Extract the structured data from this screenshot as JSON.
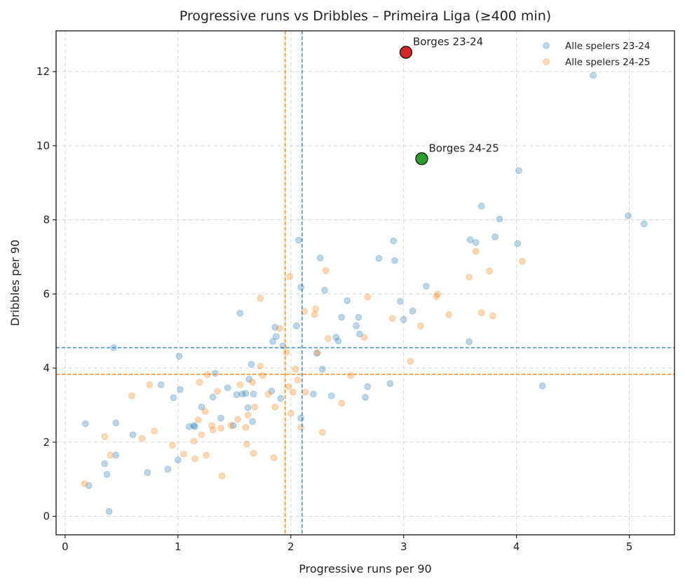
{
  "chart_data": {
    "type": "scatter",
    "title": "Progressive runs vs Dribbles – Primeira Liga (≥400 min)",
    "xlabel": "Progressive runs per 90",
    "ylabel": "Dribbles per 90",
    "xlim": [
      -0.08,
      5.4
    ],
    "ylim": [
      -0.5,
      13.1
    ],
    "xticks": [
      0,
      1,
      2,
      3,
      4,
      5
    ],
    "yticks": [
      0,
      2,
      4,
      6,
      8,
      10,
      12
    ],
    "grid": true,
    "legend_position": "top-right",
    "colors": {
      "series_2324": "#1f77b4",
      "series_2425": "#ff7f0e",
      "highlight_2324": "#d62728",
      "highlight_2425": "#2ca02c",
      "grid": "#d0d0d0"
    },
    "reference_lines": [
      {
        "axis": "x",
        "value": 2.1,
        "series": "Alle spelers 23-24"
      },
      {
        "axis": "x",
        "value": 1.95,
        "series": "Alle spelers 24-25"
      },
      {
        "axis": "y",
        "value": 4.55,
        "series": "Alle spelers 23-24"
      },
      {
        "axis": "y",
        "value": 3.83,
        "series": "Alle spelers 24-25"
      }
    ],
    "series": [
      {
        "name": "Alle spelers 23-24",
        "points": [
          [
            0.18,
            2.5
          ],
          [
            0.21,
            0.83
          ],
          [
            0.35,
            1.42
          ],
          [
            0.37,
            1.13
          ],
          [
            0.39,
            0.13
          ],
          [
            0.43,
            4.55
          ],
          [
            0.45,
            1.65
          ],
          [
            0.45,
            2.52
          ],
          [
            0.6,
            2.2
          ],
          [
            0.73,
            1.18
          ],
          [
            0.85,
            3.55
          ],
          [
            0.91,
            1.27
          ],
          [
            0.96,
            3.2
          ],
          [
            1.0,
            1.52
          ],
          [
            1.01,
            4.32
          ],
          [
            1.02,
            3.42
          ],
          [
            1.1,
            2.42
          ],
          [
            1.14,
            2.45
          ],
          [
            1.15,
            2.42
          ],
          [
            1.21,
            2.95
          ],
          [
            1.31,
            3.22
          ],
          [
            1.33,
            3.86
          ],
          [
            1.38,
            2.65
          ],
          [
            1.44,
            3.47
          ],
          [
            1.49,
            2.45
          ],
          [
            1.52,
            3.28
          ],
          [
            1.55,
            5.48
          ],
          [
            1.57,
            3.3
          ],
          [
            1.6,
            3.32
          ],
          [
            1.62,
            2.93
          ],
          [
            1.63,
            3.7
          ],
          [
            1.65,
            4.1
          ],
          [
            1.66,
            2.56
          ],
          [
            1.67,
            3.3
          ],
          [
            1.83,
            3.38
          ],
          [
            1.84,
            4.72
          ],
          [
            1.86,
            5.1
          ],
          [
            1.87,
            4.85
          ],
          [
            1.91,
            3.18
          ],
          [
            1.93,
            4.6
          ],
          [
            2.05,
            5.14
          ],
          [
            2.07,
            7.45
          ],
          [
            2.09,
            6.18
          ],
          [
            2.09,
            2.65
          ],
          [
            2.2,
            3.3
          ],
          [
            2.23,
            4.4
          ],
          [
            2.26,
            6.97
          ],
          [
            2.28,
            3.97
          ],
          [
            2.3,
            6.1
          ],
          [
            2.36,
            3.25
          ],
          [
            2.4,
            4.83
          ],
          [
            2.42,
            4.73
          ],
          [
            2.45,
            5.37
          ],
          [
            2.5,
            5.82
          ],
          [
            2.58,
            5.14
          ],
          [
            2.6,
            5.37
          ],
          [
            2.61,
            4.92
          ],
          [
            2.66,
            3.21
          ],
          [
            2.68,
            3.5
          ],
          [
            2.78,
            6.96
          ],
          [
            2.88,
            3.58
          ],
          [
            2.91,
            7.43
          ],
          [
            2.92,
            6.9
          ],
          [
            2.97,
            5.8
          ],
          [
            3.0,
            5.31
          ],
          [
            3.08,
            5.54
          ],
          [
            3.2,
            6.21
          ],
          [
            3.58,
            4.71
          ],
          [
            3.59,
            7.46
          ],
          [
            3.64,
            7.39
          ],
          [
            3.69,
            8.37
          ],
          [
            3.81,
            7.54
          ],
          [
            3.85,
            8.02
          ],
          [
            4.01,
            7.36
          ],
          [
            4.02,
            9.33
          ],
          [
            4.23,
            3.52
          ],
          [
            4.68,
            11.9
          ],
          [
            4.99,
            8.11
          ],
          [
            5.13,
            7.89
          ]
        ]
      },
      {
        "name": "Alle spelers 24-25",
        "points": [
          [
            0.17,
            0.88
          ],
          [
            0.35,
            2.15
          ],
          [
            0.4,
            1.65
          ],
          [
            0.59,
            3.25
          ],
          [
            0.68,
            2.1
          ],
          [
            0.75,
            3.55
          ],
          [
            0.79,
            2.3
          ],
          [
            0.95,
            1.92
          ],
          [
            1.05,
            1.68
          ],
          [
            1.14,
            2.03
          ],
          [
            1.15,
            1.55
          ],
          [
            1.18,
            2.6
          ],
          [
            1.21,
            2.2
          ],
          [
            1.19,
            3.62
          ],
          [
            1.24,
            2.83
          ],
          [
            1.25,
            1.65
          ],
          [
            1.26,
            3.82
          ],
          [
            1.3,
            2.45
          ],
          [
            1.31,
            2.33
          ],
          [
            1.35,
            3.37
          ],
          [
            1.38,
            2.38
          ],
          [
            1.39,
            1.09
          ],
          [
            1.47,
            2.45
          ],
          [
            1.53,
            2.62
          ],
          [
            1.55,
            3.55
          ],
          [
            1.6,
            2.4
          ],
          [
            1.61,
            1.95
          ],
          [
            1.62,
            2.73
          ],
          [
            1.66,
            3.62
          ],
          [
            1.67,
            1.7
          ],
          [
            1.68,
            2.95
          ],
          [
            1.73,
            4.05
          ],
          [
            1.73,
            5.88
          ],
          [
            1.75,
            3.8
          ],
          [
            1.8,
            3.3
          ],
          [
            1.85,
            1.58
          ],
          [
            1.86,
            2.95
          ],
          [
            1.9,
            5.07
          ],
          [
            1.96,
            4.43
          ],
          [
            1.98,
            3.5
          ],
          [
            1.99,
            6.47
          ],
          [
            2.0,
            2.78
          ],
          [
            2.02,
            3.35
          ],
          [
            2.04,
            3.97
          ],
          [
            2.06,
            3.68
          ],
          [
            2.09,
            2.4
          ],
          [
            2.12,
            5.53
          ],
          [
            2.13,
            3.35
          ],
          [
            2.21,
            5.45
          ],
          [
            2.22,
            5.6
          ],
          [
            2.24,
            4.42
          ],
          [
            2.28,
            2.27
          ],
          [
            2.31,
            6.63
          ],
          [
            2.33,
            4.8
          ],
          [
            2.45,
            3.05
          ],
          [
            2.53,
            3.8
          ],
          [
            2.65,
            4.83
          ],
          [
            2.68,
            5.92
          ],
          [
            2.9,
            5.34
          ],
          [
            3.06,
            4.18
          ],
          [
            3.15,
            5.14
          ],
          [
            3.29,
            5.93
          ],
          [
            3.3,
            6.0
          ],
          [
            3.4,
            5.44
          ],
          [
            3.58,
            6.45
          ],
          [
            3.64,
            7.15
          ],
          [
            3.69,
            5.49
          ],
          [
            3.76,
            6.62
          ],
          [
            3.79,
            5.41
          ],
          [
            4.05,
            6.88
          ]
        ]
      }
    ],
    "highlights": [
      {
        "label": "Borges 23-24",
        "x": 3.02,
        "y": 12.52
      },
      {
        "label": "Borges 24-25",
        "x": 3.16,
        "y": 9.65
      }
    ]
  }
}
